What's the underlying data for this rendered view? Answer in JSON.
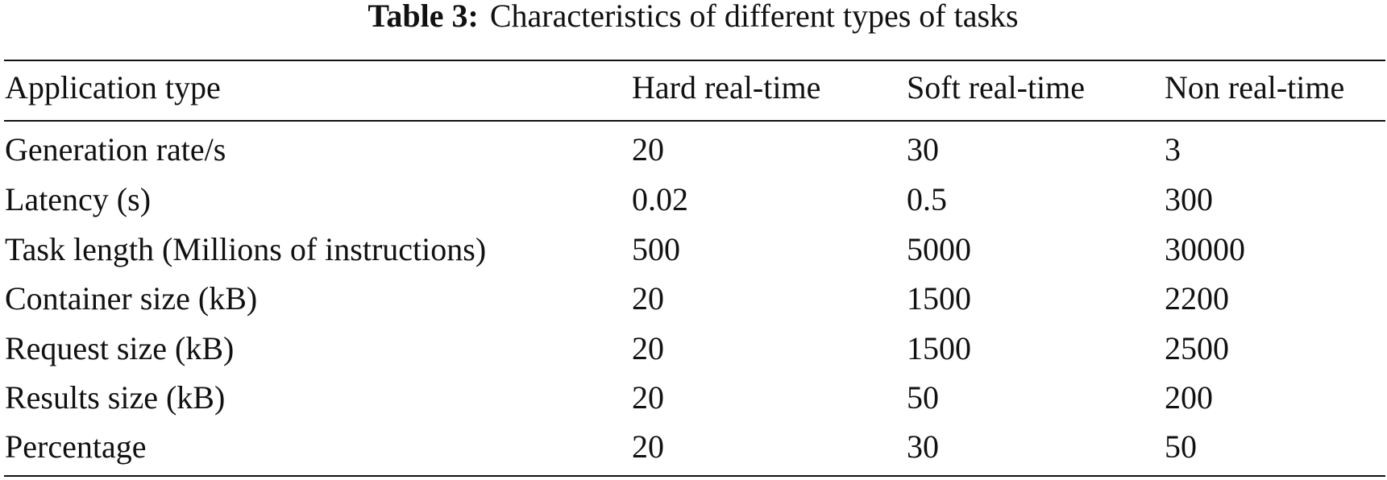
{
  "table": {
    "caption_label": "Table 3:",
    "caption": "Characteristics of different types of tasks",
    "header": [
      "Application type",
      "Hard real-time",
      "Soft real-time",
      "Non real-time"
    ],
    "rows": [
      [
        "Generation rate/s",
        "20",
        "30",
        "3"
      ],
      [
        "Latency (s)",
        "0.02",
        "0.5",
        "300"
      ],
      [
        "Task length (Millions of instructions)",
        "500",
        "5000",
        "30000"
      ],
      [
        "Container size (kB)",
        "20",
        "1500",
        "2200"
      ],
      [
        "Request size (kB)",
        "20",
        "1500",
        "2500"
      ],
      [
        "Results size (kB)",
        "20",
        "50",
        "200"
      ],
      [
        "Percentage",
        "20",
        "30",
        "50"
      ]
    ]
  }
}
